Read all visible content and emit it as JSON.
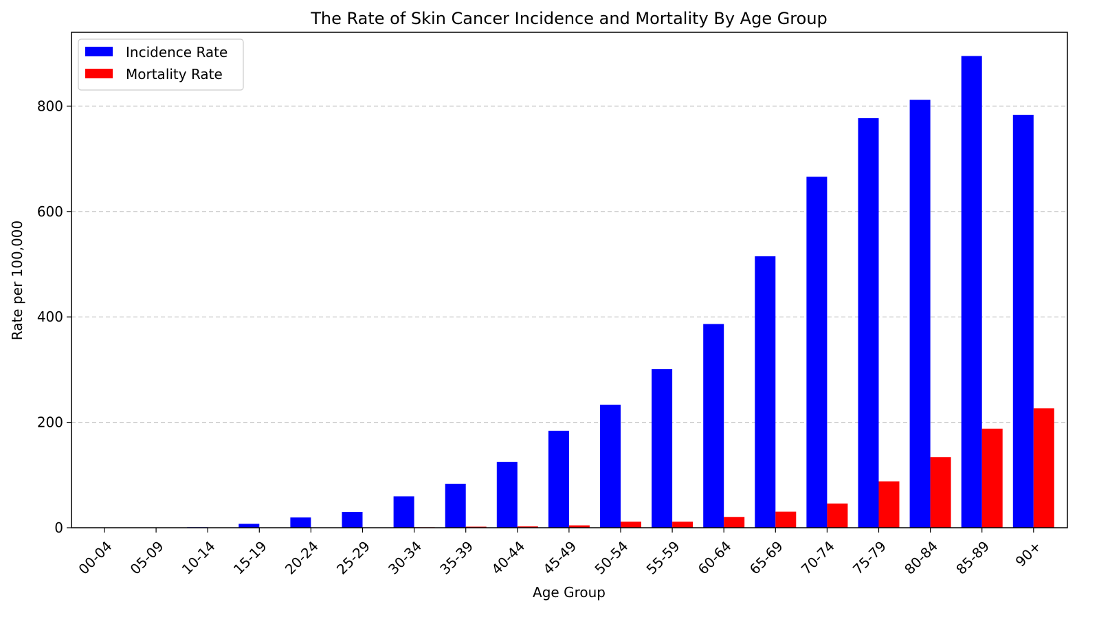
{
  "chart_data": {
    "type": "bar",
    "title": "The Rate of Skin Cancer Incidence and Mortality By Age Group",
    "xlabel": "Age Group",
    "ylabel": "Rate per 100,000",
    "categories": [
      "00-04",
      "05-09",
      "10-14",
      "15-19",
      "20-24",
      "25-29",
      "30-34",
      "35-39",
      "40-44",
      "45-49",
      "50-54",
      "55-59",
      "60-64",
      "65-69",
      "70-74",
      "75-79",
      "80-84",
      "85-89",
      "90+"
    ],
    "series": [
      {
        "name": "Incidence Rate",
        "color": "#0000ff",
        "values": [
          0.1,
          0.3,
          1.0,
          7.5,
          19.5,
          30.0,
          59.5,
          83.5,
          125.0,
          184.0,
          233.5,
          301.0,
          386.5,
          515.0,
          666.0,
          777.0,
          812.0,
          895.0,
          783.5
        ]
      },
      {
        "name": "Mortality Rate",
        "color": "#ff0000",
        "values": [
          0.0,
          0.0,
          0.0,
          0.1,
          0.3,
          0.5,
          0.9,
          2.0,
          2.5,
          4.5,
          11.5,
          11.5,
          20.5,
          30.5,
          46.0,
          88.0,
          134.0,
          188.0,
          226.5
        ]
      }
    ],
    "ylim": [
      0,
      940
    ],
    "yticks": [
      0,
      200,
      400,
      600,
      800
    ],
    "grid": "y-dashed",
    "legend_position": "top-left"
  }
}
